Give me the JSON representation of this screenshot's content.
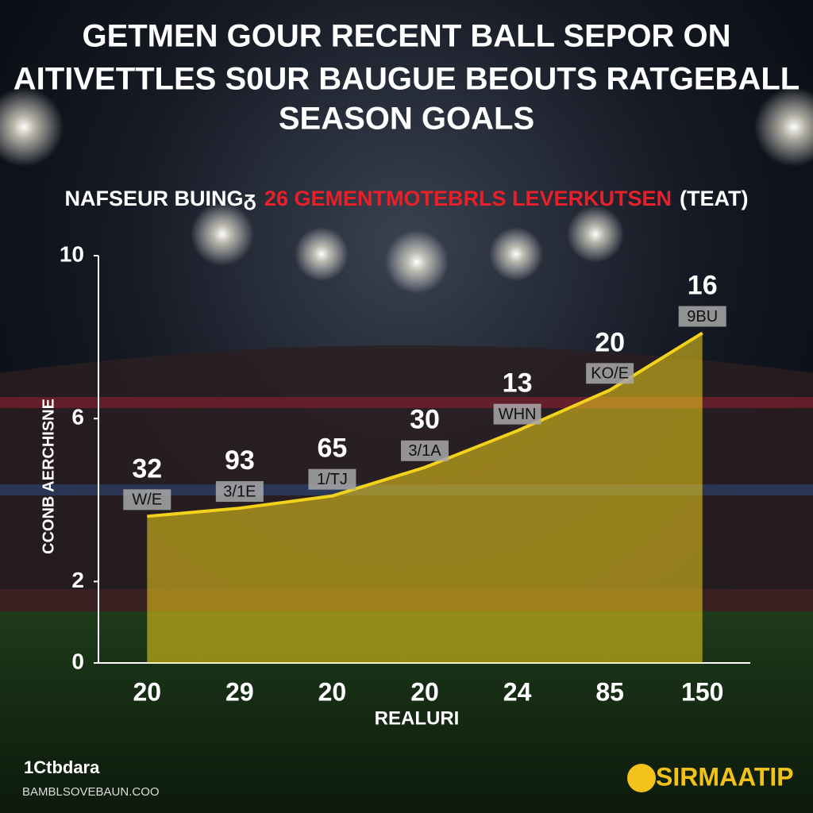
{
  "chart_data": {
    "type": "area",
    "title": [
      "GETMEN GOUR RECENT BALL SEPOR ON",
      "AITIVETTLES S0UR BAUGUE BEOUTS RATGEBALL",
      "SEASON GOALS"
    ],
    "subtitle": [
      {
        "text": "NAFSEUR BUINGᵹ",
        "color": "#ffffff"
      },
      {
        "text": "26 GEMENTMOTEBRLS  LEVERKUTSEN",
        "color": "#e8202a"
      },
      {
        "text": "(TEAT)",
        "color": "#ffffff"
      }
    ],
    "categories": [
      "20",
      "29",
      "20",
      "20",
      "24",
      "85",
      "150"
    ],
    "values": [
      3.6,
      3.8,
      4.1,
      4.8,
      5.7,
      6.7,
      8.1
    ],
    "annotations": [
      "32",
      "93",
      "65",
      "30",
      "13",
      "20",
      "16"
    ],
    "badges": [
      "W/E",
      "3/1E",
      "1/TJ",
      "3/1A",
      "WHN",
      "KO/E",
      "9BU"
    ],
    "color": "#f2d21a",
    "ylim": [
      0,
      10
    ],
    "yticks": [
      0,
      2,
      6,
      10
    ],
    "xlabel": "REALURI",
    "ylabel": "CCONB AERCHISNE",
    "footer_left": [
      "1Ctbdara",
      "BAMBLSOVEBAUN.COO"
    ],
    "footer_right": "SIRMAATIP"
  }
}
